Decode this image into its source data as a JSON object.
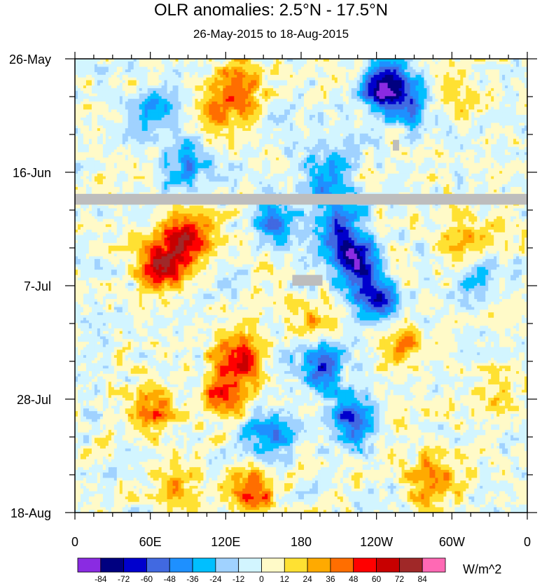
{
  "title": "OLR anomalies: 2.5°N - 17.5°N",
  "subtitle": "26-May-2015 to 18-Aug-2015",
  "units": "W/m^2",
  "chart_data": {
    "type": "heatmap",
    "x_ticks": [
      {
        "lon": 0,
        "label": "0"
      },
      {
        "lon": 60,
        "label": "60E"
      },
      {
        "lon": 120,
        "label": "120E"
      },
      {
        "lon": 180,
        "label": "180"
      },
      {
        "lon": 240,
        "label": "120W"
      },
      {
        "lon": 300,
        "label": "60W"
      },
      {
        "lon": 360,
        "label": "0"
      }
    ],
    "x_range": [
      0,
      360
    ],
    "y_ticks": [
      {
        "day": 0,
        "label": "26-May"
      },
      {
        "day": 21,
        "label": "16-Jun"
      },
      {
        "day": 42,
        "label": "7-Jul"
      },
      {
        "day": 63,
        "label": "28-Jul"
      },
      {
        "day": 84,
        "label": "18-Aug"
      }
    ],
    "y_range": [
      0,
      84
    ],
    "missing_data_bands": [
      {
        "lon_start": 0,
        "lon_end": 360,
        "day_start": 25,
        "day_end": 27
      },
      {
        "lon_start": 173,
        "lon_end": 197,
        "day_start": 40,
        "day_end": 42
      },
      {
        "lon_start": 253,
        "lon_end": 258,
        "day_start": 15,
        "day_end": 17
      }
    ],
    "features": [
      {
        "lon": 70,
        "day": 38,
        "value": 70
      },
      {
        "lon": 90,
        "day": 33,
        "value": 60
      },
      {
        "lon": 130,
        "day": 55,
        "value": 60
      },
      {
        "lon": 120,
        "day": 62,
        "value": 50
      },
      {
        "lon": 140,
        "day": 80,
        "value": 55
      },
      {
        "lon": 60,
        "day": 65,
        "value": 40
      },
      {
        "lon": 130,
        "day": 5,
        "value": 45
      },
      {
        "lon": 115,
        "day": 10,
        "value": 30
      },
      {
        "lon": 80,
        "day": 80,
        "value": 35
      },
      {
        "lon": 245,
        "day": 5,
        "value": -80
      },
      {
        "lon": 265,
        "day": 8,
        "value": -50
      },
      {
        "lon": 225,
        "day": 38,
        "value": -80
      },
      {
        "lon": 210,
        "day": 32,
        "value": -60
      },
      {
        "lon": 160,
        "day": 30,
        "value": -50
      },
      {
        "lon": 200,
        "day": 22,
        "value": -45
      },
      {
        "lon": 240,
        "day": 45,
        "value": -60
      },
      {
        "lon": 195,
        "day": 57,
        "value": -55
      },
      {
        "lon": 220,
        "day": 67,
        "value": -60
      },
      {
        "lon": 155,
        "day": 70,
        "value": -45
      },
      {
        "lon": 60,
        "day": 10,
        "value": -40
      },
      {
        "lon": 90,
        "day": 20,
        "value": -35
      },
      {
        "lon": 320,
        "day": 40,
        "value": -30
      },
      {
        "lon": 300,
        "day": 6,
        "value": 25
      },
      {
        "lon": 310,
        "day": 34,
        "value": 35
      },
      {
        "lon": 285,
        "day": 78,
        "value": 45
      },
      {
        "lon": 260,
        "day": 52,
        "value": 30
      },
      {
        "lon": 190,
        "day": 48,
        "value": 25
      },
      {
        "lon": 330,
        "day": 62,
        "value": 20
      }
    ],
    "colorbar": {
      "levels": [
        -84,
        -72,
        -60,
        -48,
        -36,
        -24,
        -12,
        0,
        12,
        24,
        36,
        48,
        60,
        72,
        84
      ],
      "colors": [
        "#8a2be2",
        "#000080",
        "#0000cd",
        "#4169e1",
        "#1e90ff",
        "#00bfff",
        "#a0d2ff",
        "#d2f5ff",
        "#fffac8",
        "#ffe132",
        "#ffaa00",
        "#ff6e00",
        "#ff0000",
        "#c80000",
        "#a02828",
        "#ff69b4"
      ]
    }
  }
}
